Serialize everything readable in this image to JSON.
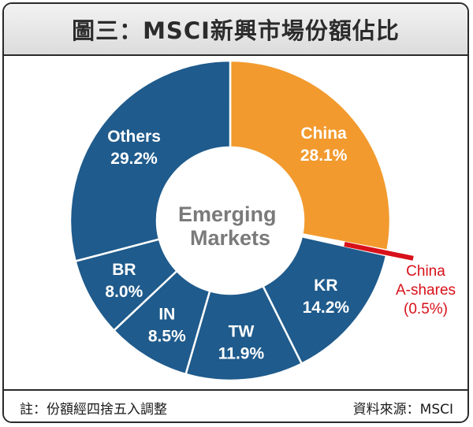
{
  "title": "圖三：MSCI新興市場份額佔比",
  "footer": {
    "note": "註：份額經四捨五入調整",
    "source": "資料來源：MSCI"
  },
  "colors": {
    "china": "#f29a2e",
    "others": "#1f5b8c",
    "highlight": "#d8101a",
    "separator": "#ffffff"
  },
  "chart_data": {
    "type": "pie",
    "center_label": [
      "Emerging",
      "Markets"
    ],
    "slices": [
      {
        "name": "China",
        "value": 28.1,
        "label": "28.1%"
      },
      {
        "name": "China A-shares",
        "value": 0.5,
        "label": "(0.5%)"
      },
      {
        "name": "KR",
        "value": 14.2,
        "label": "14.2%"
      },
      {
        "name": "TW",
        "value": 11.9,
        "label": "11.9%"
      },
      {
        "name": "IN",
        "value": 8.5,
        "label": "8.5%"
      },
      {
        "name": "BR",
        "value": 8.0,
        "label": "8.0%"
      },
      {
        "name": "Others",
        "value": 29.2,
        "label": "29.2%"
      }
    ],
    "callout": {
      "slice": "China A-shares",
      "lines": [
        "China",
        "A-shares",
        "(0.5%)"
      ]
    }
  }
}
